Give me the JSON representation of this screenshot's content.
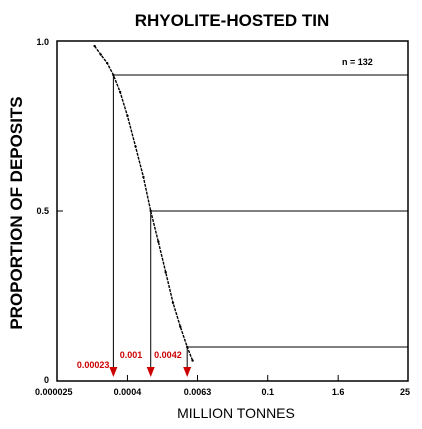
{
  "chart_data": {
    "type": "scatter",
    "title": "RHYOLITE-HOSTED TIN",
    "xlabel": "MILLION TONNES",
    "ylabel": "PROPORTION OF DEPOSITS",
    "x_scale": "log",
    "xlim": [
      2.5e-05,
      25
    ],
    "ylim": [
      0,
      1
    ],
    "x_ticks": [
      {
        "value": 2.5e-05,
        "label": "0.000025"
      },
      {
        "value": 0.0004,
        "label": "0.0004"
      },
      {
        "value": 0.0063,
        "label": "0.0063"
      },
      {
        "value": 0.1,
        "label": "0.1"
      },
      {
        "value": 1.6,
        "label": "1.6"
      },
      {
        "value": 25,
        "label": "25"
      }
    ],
    "y_ticks": [
      {
        "value": 0,
        "label": "0"
      },
      {
        "value": 0.5,
        "label": "0.5"
      },
      {
        "value": 1,
        "label": "1.0"
      }
    ],
    "n_label": "n = 132",
    "percentile_lines": [
      0.9,
      0.5,
      0.1
    ],
    "annotations": [
      {
        "x": 0.00023,
        "y": 0.9,
        "label": "0.00023"
      },
      {
        "x": 0.001,
        "y": 0.5,
        "label": "0.001"
      },
      {
        "x": 0.0042,
        "y": 0.1,
        "label": "0.0042"
      }
    ],
    "series": [
      {
        "x": [
          0.00011,
          0.00014,
          0.00018,
          0.00023,
          0.0003,
          0.0004,
          0.00055,
          0.00075,
          0.001,
          0.00135,
          0.0018,
          0.0024,
          0.0032,
          0.0042,
          0.0052
        ],
        "y": [
          0.985,
          0.96,
          0.935,
          0.9,
          0.85,
          0.78,
          0.69,
          0.6,
          0.5,
          0.41,
          0.32,
          0.23,
          0.16,
          0.1,
          0.06
        ]
      }
    ],
    "colors": {
      "annotation": "#cc0000",
      "axis": "#000000"
    },
    "grid": false,
    "legend": "none"
  }
}
